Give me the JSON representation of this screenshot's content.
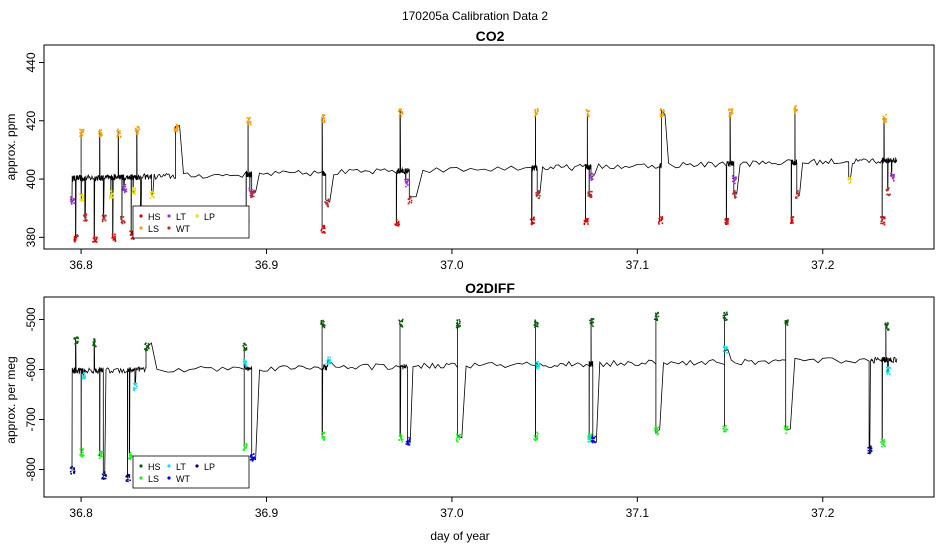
{
  "figure": {
    "title": "170205a   Calibration Data 2",
    "xlabel": "day of year"
  },
  "colors": {
    "HS": "#dd0000",
    "LS": "#f5a000",
    "LT": "#9b30d0",
    "WT": "#b03030",
    "LP": "#f0e000",
    "O2_HS": "#0a5a0a",
    "O2_LS": "#22ee22",
    "O2_LT": "#00e5ee",
    "O2_WT": "#0000ee",
    "O2_LP": "#000080",
    "trace": "#000000"
  },
  "chart_data": [
    {
      "type": "scatter",
      "title": "CO2",
      "ylabel": "approx. ppm",
      "xlim": [
        36.78,
        37.26
      ],
      "ylim": [
        376,
        446
      ],
      "xticks": [
        36.8,
        36.9,
        37.0,
        37.1,
        37.2
      ],
      "xtick_labels": [
        "36.8",
        "36.9",
        "37.0",
        "37.1",
        "37.2"
      ],
      "yticks": [
        380,
        400,
        420,
        440
      ],
      "ytick_labels": [
        "380",
        "400",
        "420",
        "440"
      ],
      "legend": {
        "placement": "bottom-left",
        "entries": [
          "HS",
          "LS",
          "LT",
          "WT",
          "LP"
        ]
      },
      "series": [
        {
          "name": "HS",
          "x": [
            36.797,
            36.807,
            36.817,
            36.827,
            36.889,
            36.93,
            36.97,
            37.043,
            37.072,
            37.112,
            37.148,
            37.183,
            37.232
          ],
          "y": [
            380,
            380,
            380,
            381,
            385,
            383,
            385,
            386,
            386,
            386,
            386,
            386,
            386
          ]
        },
        {
          "name": "LS",
          "x": [
            36.8,
            36.81,
            36.82,
            36.83,
            36.851,
            36.89,
            36.93,
            36.972,
            37.045,
            37.073,
            37.113,
            37.15,
            37.185,
            37.233
          ],
          "y": [
            416,
            416,
            416,
            417,
            418,
            420,
            421,
            423,
            423,
            423,
            423,
            423,
            424,
            421
          ]
        },
        {
          "name": "LT",
          "x": [
            36.795,
            36.823,
            36.891,
            36.975,
            37.075,
            37.152,
            37.237
          ],
          "y": [
            393,
            397,
            396,
            399,
            401,
            400,
            401
          ]
        },
        {
          "name": "WT",
          "x": [
            36.802,
            36.812,
            36.822,
            36.832,
            36.892,
            36.932,
            36.977,
            37.046,
            37.074,
            37.152,
            37.186,
            37.235
          ],
          "y": [
            387,
            387,
            386,
            386,
            395,
            392,
            393,
            395,
            395,
            395,
            395,
            396
          ]
        },
        {
          "name": "LP",
          "x": [
            36.8,
            36.816,
            36.828,
            36.838,
            37.214
          ],
          "y": [
            394,
            395,
            396,
            395,
            400
          ]
        }
      ]
    },
    {
      "type": "scatter",
      "title": "O2DIFF",
      "ylabel": "approx. per meg",
      "xlim": [
        36.78,
        37.26
      ],
      "ylim": [
        -855,
        -455
      ],
      "xticks": [
        36.8,
        36.9,
        37.0,
        37.1,
        37.2
      ],
      "xtick_labels": [
        "36.8",
        "36.9",
        "37.0",
        "37.1",
        "37.2"
      ],
      "yticks": [
        -800,
        -700,
        -600,
        -500
      ],
      "ytick_labels": [
        "-800",
        "-700",
        "-600",
        "-500"
      ],
      "legend": {
        "placement": "bottom-left",
        "entries": [
          "HS",
          "LS",
          "LT",
          "WT",
          "LP"
        ]
      },
      "series": [
        {
          "name": "HS",
          "x": [
            36.797,
            36.807,
            36.835,
            36.888,
            36.93,
            36.972,
            37.003,
            37.045,
            37.075,
            37.11,
            37.147,
            37.18,
            37.234
          ],
          "y": [
            -540,
            -545,
            -553,
            -553,
            -508,
            -505,
            -507,
            -507,
            -505,
            -492,
            -492,
            -503,
            -513
          ]
        },
        {
          "name": "LS",
          "x": [
            36.8,
            36.81,
            36.826,
            36.888,
            36.93,
            36.972,
            37.003,
            37.045,
            37.074,
            37.11,
            37.147,
            37.18,
            37.232
          ],
          "y": [
            -765,
            -770,
            -770,
            -753,
            -732,
            -735,
            -735,
            -732,
            -735,
            -722,
            -718,
            -718,
            -745
          ]
        },
        {
          "name": "LT",
          "x": [
            36.801,
            36.829,
            36.888,
            36.933,
            37.046,
            37.074,
            37.147,
            37.235
          ],
          "y": [
            -612,
            -633,
            -585,
            -582,
            -588,
            -736,
            -560,
            -600
          ]
        },
        {
          "name": "WT",
          "x": [
            36.892,
            36.976,
            37.076
          ],
          "y": [
            -775,
            -742,
            -740
          ]
        },
        {
          "name": "LP",
          "x": [
            36.795,
            36.812,
            36.825,
            37.225
          ],
          "y": [
            -800,
            -810,
            -815,
            -760
          ]
        }
      ]
    }
  ]
}
